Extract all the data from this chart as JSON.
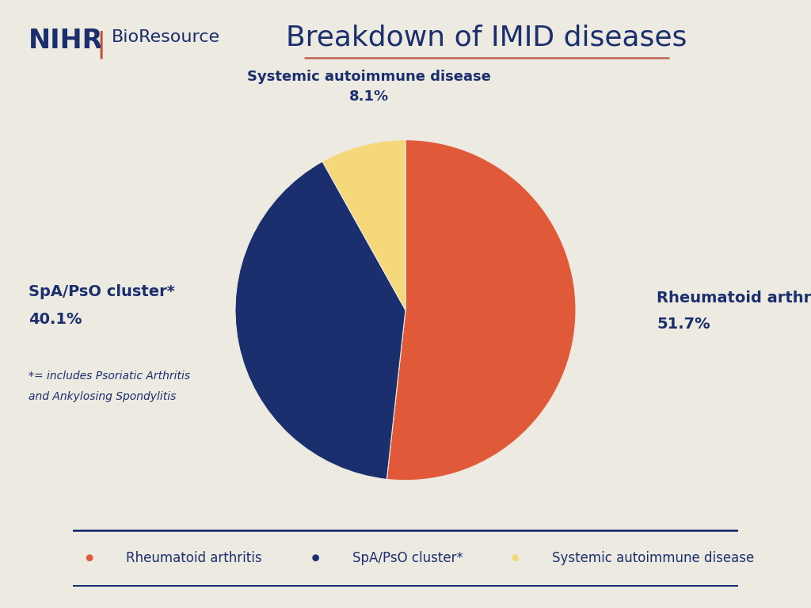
{
  "title": "Breakdown of IMID diseases",
  "background_color": "#edeae2",
  "slices": [
    51.7,
    40.1,
    8.1
  ],
  "labels": [
    "Rheumatoid arthritis",
    "SpA/PsO cluster*",
    "Systemic autoimmune disease"
  ],
  "colors": [
    "#e05a3a",
    "#1b2f6e",
    "#f5d87a"
  ],
  "startangle": 90,
  "nihr_text_color": "#1b2f6e",
  "nihr_bar_color": "#c0503a",
  "title_color": "#1b2f6e",
  "label_color": "#1b2f6e",
  "legend_border_color": "#1b2f6e",
  "underline_color": "#c07060"
}
